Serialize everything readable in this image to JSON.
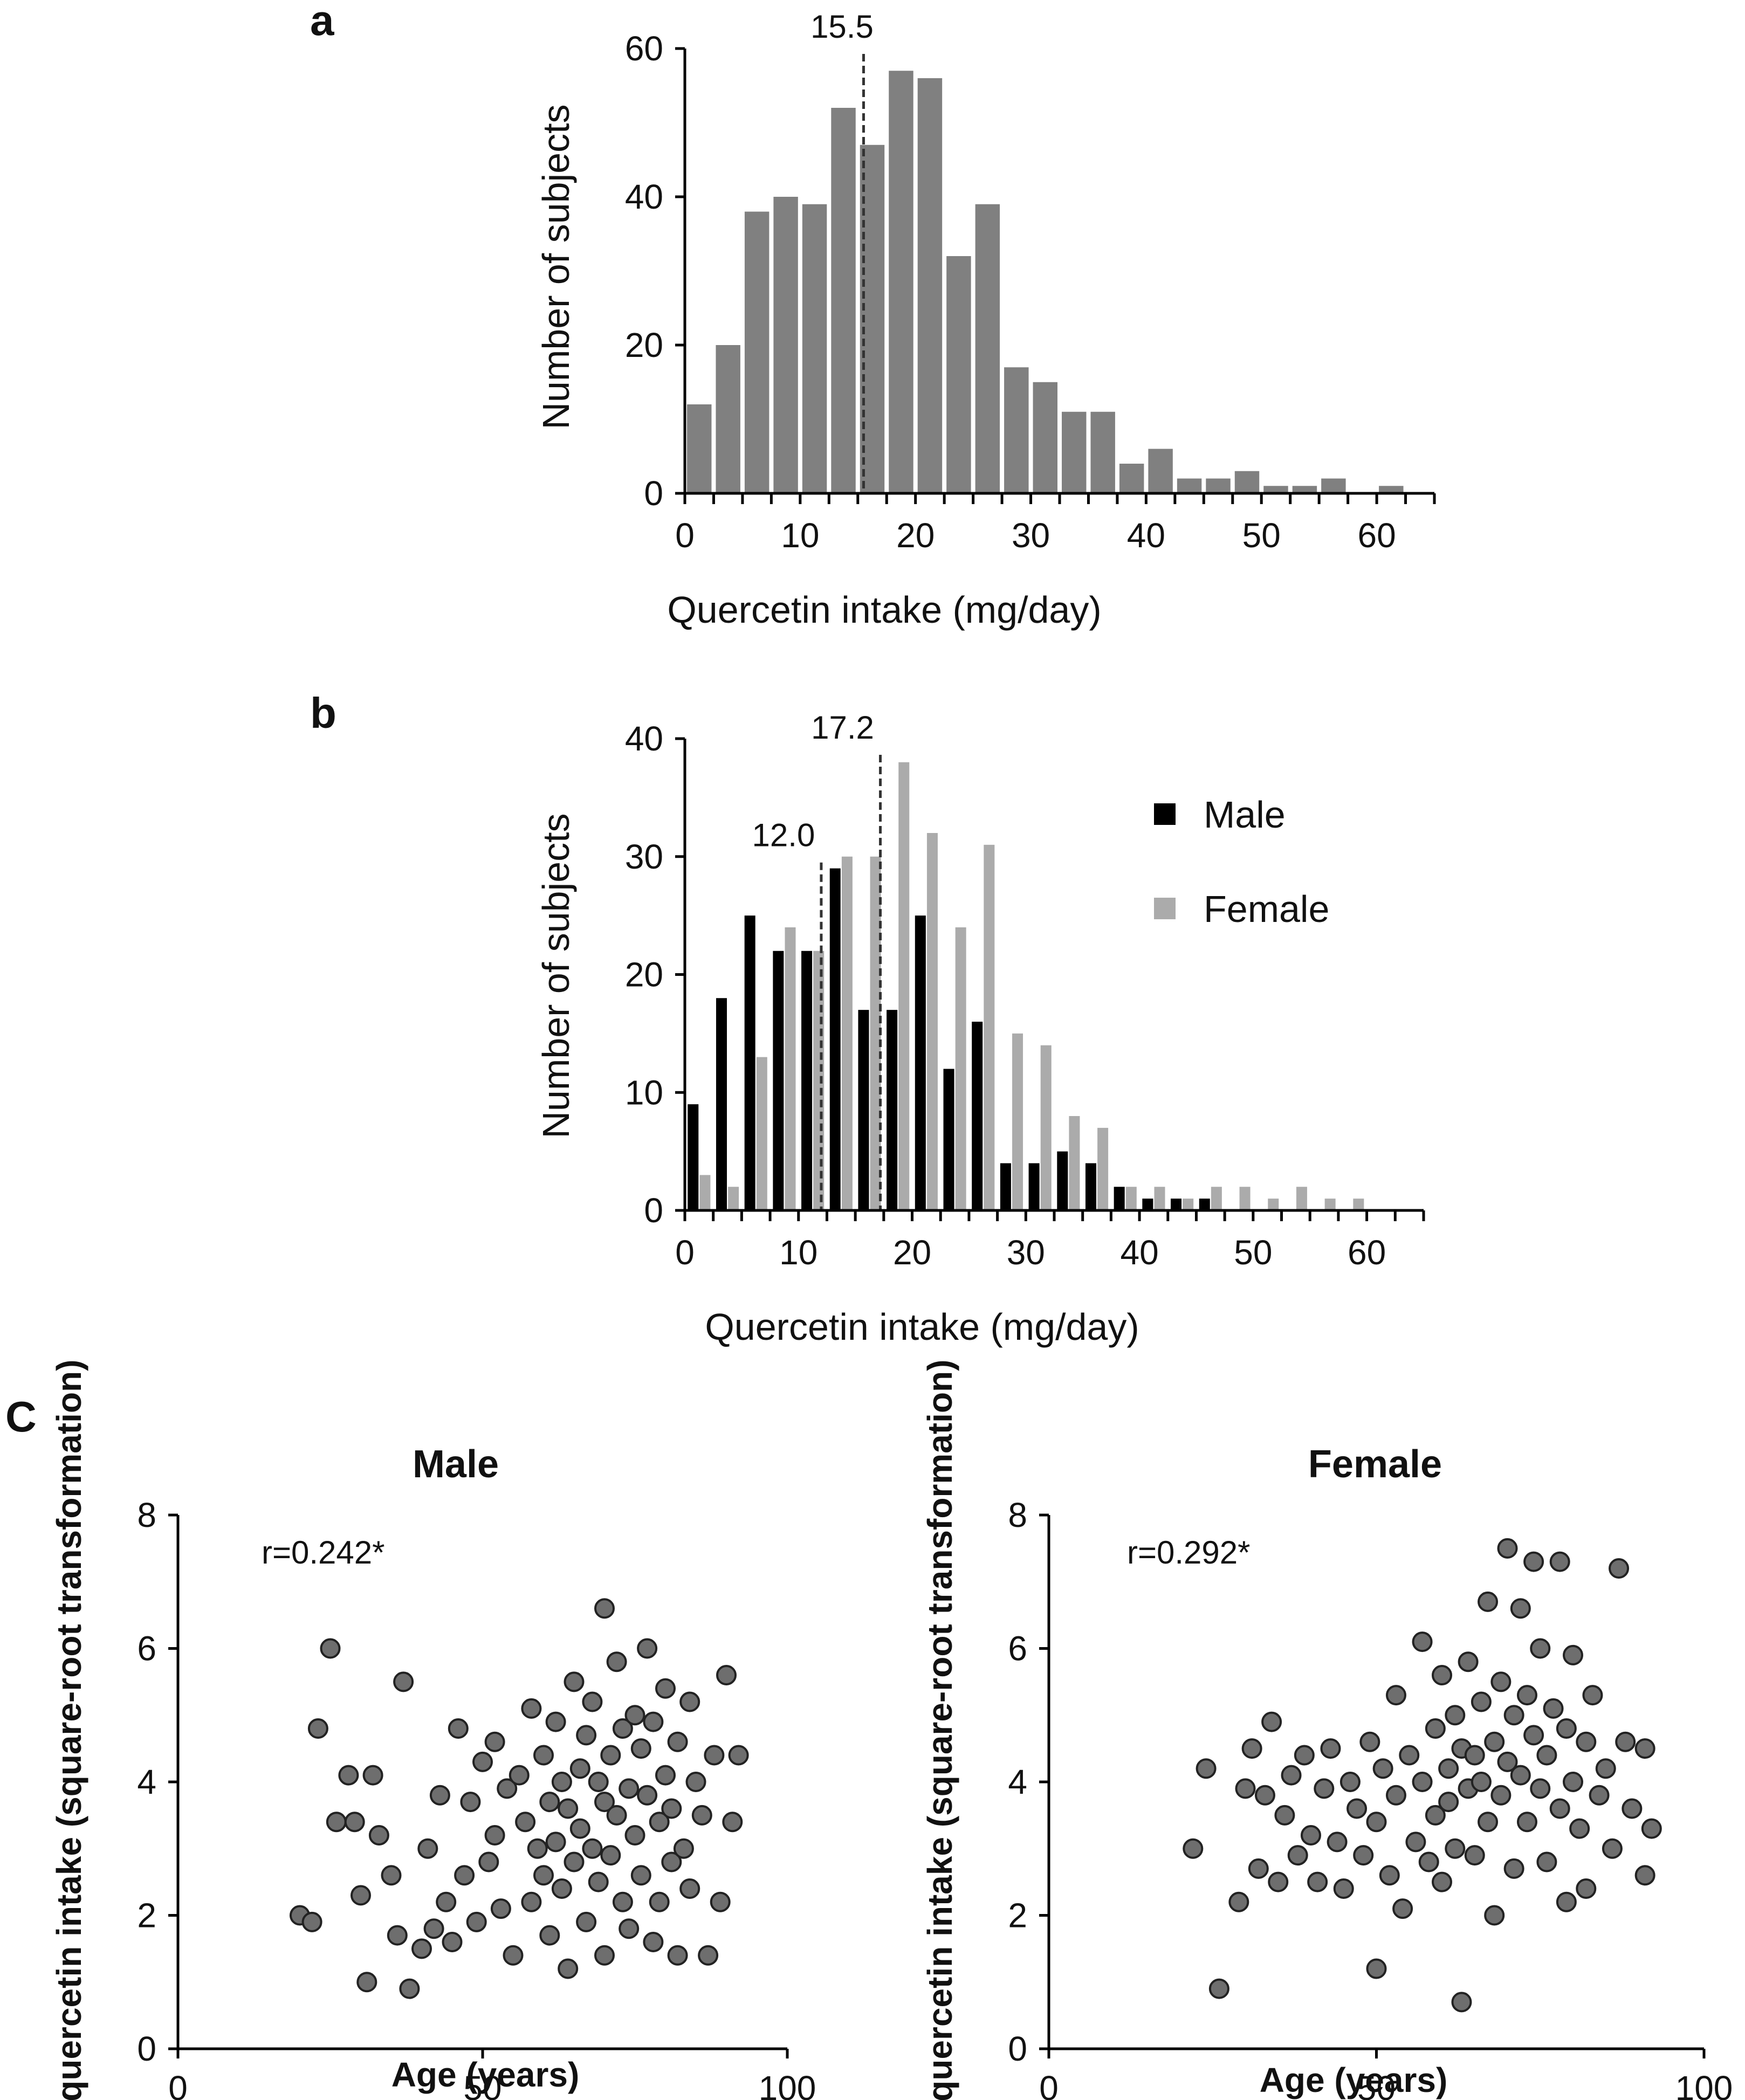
{
  "panels": {
    "a": {
      "letter": "a"
    },
    "b": {
      "letter": "b"
    },
    "c": {
      "letter": "C",
      "male_title": "Male",
      "female_title": "Female"
    }
  },
  "colors": {
    "bar_gray": "#808080",
    "male": "#000000",
    "female": "#ababab",
    "dot_fill": "#6e6e6e"
  },
  "chart_data": [
    {
      "id": "a",
      "type": "bar",
      "xlabel": "Quercetin intake (mg/day)",
      "ylabel": "Number of subjects",
      "xlim": [
        0,
        65
      ],
      "ylim": [
        0,
        60
      ],
      "xticks": [
        0,
        10,
        20,
        30,
        40,
        50,
        60
      ],
      "yticks": [
        0,
        20,
        40,
        60
      ],
      "bin_width": 2.5,
      "bin_starts": [
        0,
        2.5,
        5,
        7.5,
        10,
        12.5,
        15,
        17.5,
        20,
        22.5,
        25,
        27.5,
        30,
        32.5,
        35,
        37.5,
        40,
        42.5,
        45,
        47.5,
        50,
        52.5,
        55,
        57.5,
        60,
        62.5
      ],
      "values": [
        12,
        20,
        38,
        40,
        39,
        52,
        47,
        57,
        56,
        32,
        39,
        17,
        15,
        11,
        11,
        4,
        6,
        2,
        2,
        3,
        1,
        1,
        2,
        0,
        1,
        0
      ],
      "median_line": {
        "x": 15.5,
        "label": "15.5"
      }
    },
    {
      "id": "b",
      "type": "bar",
      "xlabel": "Quercetin intake (mg/day)",
      "ylabel": "Number of subjects",
      "xlim": [
        0,
        65
      ],
      "ylim": [
        0,
        40
      ],
      "xticks": [
        0,
        10,
        20,
        30,
        40,
        50,
        60
      ],
      "yticks": [
        0,
        10,
        20,
        30,
        40
      ],
      "bin_width": 2.5,
      "bin_starts": [
        0,
        2.5,
        5,
        7.5,
        10,
        12.5,
        15,
        17.5,
        20,
        22.5,
        25,
        27.5,
        30,
        32.5,
        35,
        37.5,
        40,
        42.5,
        45,
        47.5,
        50,
        52.5,
        55,
        57.5,
        60,
        62.5
      ],
      "series": [
        {
          "name": "Male",
          "values": [
            9,
            18,
            25,
            22,
            22,
            29,
            17,
            17,
            25,
            12,
            16,
            4,
            4,
            5,
            4,
            2,
            1,
            1,
            1,
            0,
            0,
            0,
            0,
            0,
            0,
            0
          ]
        },
        {
          "name": "Female",
          "values": [
            3,
            2,
            13,
            24,
            22,
            30,
            30,
            38,
            32,
            24,
            31,
            15,
            14,
            8,
            7,
            2,
            2,
            1,
            2,
            2,
            1,
            2,
            1,
            1,
            0,
            0
          ]
        }
      ],
      "median_lines": [
        {
          "x": 12.0,
          "label": "12.0"
        },
        {
          "x": 17.2,
          "label": "17.2"
        }
      ]
    },
    {
      "id": "c-male",
      "type": "scatter",
      "title": "Male",
      "xlabel": "Age (years)",
      "ylabel": "Daily quercetin intake (square-root transformation)",
      "xlim": [
        0,
        100
      ],
      "ylim": [
        0,
        8
      ],
      "xticks": [
        0,
        50,
        100
      ],
      "yticks": [
        0,
        2,
        4,
        6,
        8
      ],
      "annotation": "r=0.242*",
      "points": [
        [
          20,
          2.0
        ],
        [
          22,
          1.9
        ],
        [
          23,
          4.8
        ],
        [
          25,
          6.0
        ],
        [
          26,
          3.4
        ],
        [
          28,
          4.1
        ],
        [
          29,
          3.4
        ],
        [
          30,
          2.3
        ],
        [
          31,
          1.0
        ],
        [
          32,
          4.1
        ],
        [
          33,
          3.2
        ],
        [
          35,
          2.6
        ],
        [
          36,
          1.7
        ],
        [
          37,
          5.5
        ],
        [
          38,
          0.9
        ],
        [
          40,
          1.5
        ],
        [
          41,
          3.0
        ],
        [
          42,
          1.8
        ],
        [
          43,
          3.8
        ],
        [
          44,
          2.2
        ],
        [
          45,
          1.6
        ],
        [
          46,
          4.8
        ],
        [
          47,
          2.6
        ],
        [
          48,
          3.7
        ],
        [
          49,
          1.9
        ],
        [
          50,
          4.3
        ],
        [
          51,
          2.8
        ],
        [
          52,
          3.2
        ],
        [
          52,
          4.6
        ],
        [
          53,
          2.1
        ],
        [
          54,
          3.9
        ],
        [
          55,
          1.4
        ],
        [
          56,
          4.1
        ],
        [
          57,
          3.4
        ],
        [
          58,
          5.1
        ],
        [
          58,
          2.2
        ],
        [
          59,
          3.0
        ],
        [
          60,
          4.4
        ],
        [
          60,
          2.6
        ],
        [
          61,
          3.7
        ],
        [
          61,
          1.7
        ],
        [
          62,
          4.9
        ],
        [
          62,
          3.1
        ],
        [
          63,
          2.4
        ],
        [
          63,
          4.0
        ],
        [
          64,
          3.6
        ],
        [
          64,
          1.2
        ],
        [
          65,
          5.5
        ],
        [
          65,
          2.8
        ],
        [
          66,
          4.2
        ],
        [
          66,
          3.3
        ],
        [
          67,
          1.9
        ],
        [
          67,
          4.7
        ],
        [
          68,
          3.0
        ],
        [
          68,
          5.2
        ],
        [
          69,
          2.5
        ],
        [
          69,
          4.0
        ],
        [
          70,
          3.7
        ],
        [
          70,
          6.6
        ],
        [
          70,
          1.4
        ],
        [
          71,
          4.4
        ],
        [
          71,
          2.9
        ],
        [
          72,
          5.8
        ],
        [
          72,
          3.5
        ],
        [
          73,
          2.2
        ],
        [
          73,
          4.8
        ],
        [
          74,
          3.9
        ],
        [
          74,
          1.8
        ],
        [
          75,
          5.0
        ],
        [
          75,
          3.2
        ],
        [
          76,
          4.5
        ],
        [
          76,
          2.6
        ],
        [
          77,
          6.0
        ],
        [
          77,
          3.8
        ],
        [
          78,
          1.6
        ],
        [
          78,
          4.9
        ],
        [
          79,
          3.4
        ],
        [
          79,
          2.2
        ],
        [
          80,
          5.4
        ],
        [
          80,
          4.1
        ],
        [
          81,
          2.8
        ],
        [
          81,
          3.6
        ],
        [
          82,
          1.4
        ],
        [
          82,
          4.6
        ],
        [
          83,
          3.0
        ],
        [
          84,
          5.2
        ],
        [
          84,
          2.4
        ],
        [
          85,
          4.0
        ],
        [
          86,
          3.5
        ],
        [
          87,
          1.4
        ],
        [
          88,
          4.4
        ],
        [
          89,
          2.2
        ],
        [
          90,
          5.6
        ],
        [
          91,
          3.4
        ],
        [
          92,
          4.4
        ]
      ]
    },
    {
      "id": "c-female",
      "type": "scatter",
      "title": "Female",
      "xlabel": "Age (years)",
      "ylabel": "Daily quercetin intake (square-root transformation)",
      "xlim": [
        0,
        100
      ],
      "ylim": [
        0,
        8
      ],
      "xticks": [
        0,
        50,
        100
      ],
      "yticks": [
        0,
        2,
        4,
        6,
        8
      ],
      "annotation": "r=0.292*",
      "points": [
        [
          22,
          3.0
        ],
        [
          24,
          4.2
        ],
        [
          26,
          0.9
        ],
        [
          29,
          2.2
        ],
        [
          30,
          3.9
        ],
        [
          31,
          4.5
        ],
        [
          32,
          2.7
        ],
        [
          33,
          3.8
        ],
        [
          34,
          4.9
        ],
        [
          35,
          2.5
        ],
        [
          36,
          3.5
        ],
        [
          37,
          4.1
        ],
        [
          38,
          2.9
        ],
        [
          39,
          4.4
        ],
        [
          40,
          3.2
        ],
        [
          41,
          2.5
        ],
        [
          42,
          3.9
        ],
        [
          43,
          4.5
        ],
        [
          44,
          3.1
        ],
        [
          45,
          2.4
        ],
        [
          46,
          4.0
        ],
        [
          47,
          3.6
        ],
        [
          48,
          2.9
        ],
        [
          49,
          4.6
        ],
        [
          50,
          1.2
        ],
        [
          50,
          3.4
        ],
        [
          51,
          4.2
        ],
        [
          52,
          2.6
        ],
        [
          53,
          5.3
        ],
        [
          53,
          3.8
        ],
        [
          54,
          2.1
        ],
        [
          55,
          4.4
        ],
        [
          56,
          3.1
        ],
        [
          57,
          6.1
        ],
        [
          57,
          4.0
        ],
        [
          58,
          2.8
        ],
        [
          59,
          4.8
        ],
        [
          59,
          3.5
        ],
        [
          60,
          5.6
        ],
        [
          60,
          2.5
        ],
        [
          61,
          4.2
        ],
        [
          61,
          3.7
        ],
        [
          62,
          5.0
        ],
        [
          62,
          3.0
        ],
        [
          63,
          4.5
        ],
        [
          63,
          0.7
        ],
        [
          64,
          5.8
        ],
        [
          64,
          3.9
        ],
        [
          65,
          4.4
        ],
        [
          65,
          2.9
        ],
        [
          66,
          5.2
        ],
        [
          66,
          4.0
        ],
        [
          67,
          3.4
        ],
        [
          67,
          6.7
        ],
        [
          68,
          4.6
        ],
        [
          68,
          2.0
        ],
        [
          69,
          5.5
        ],
        [
          69,
          3.8
        ],
        [
          70,
          7.5
        ],
        [
          70,
          4.3
        ],
        [
          71,
          5.0
        ],
        [
          71,
          2.7
        ],
        [
          72,
          6.6
        ],
        [
          72,
          4.1
        ],
        [
          73,
          3.4
        ],
        [
          73,
          5.3
        ],
        [
          74,
          7.3
        ],
        [
          74,
          4.7
        ],
        [
          75,
          3.9
        ],
        [
          75,
          6.0
        ],
        [
          76,
          4.4
        ],
        [
          76,
          2.8
        ],
        [
          77,
          5.1
        ],
        [
          78,
          3.6
        ],
        [
          78,
          7.3
        ],
        [
          79,
          4.8
        ],
        [
          79,
          2.2
        ],
        [
          80,
          4.0
        ],
        [
          80,
          5.9
        ],
        [
          81,
          3.3
        ],
        [
          82,
          4.6
        ],
        [
          82,
          2.4
        ],
        [
          83,
          5.3
        ],
        [
          84,
          3.8
        ],
        [
          85,
          4.2
        ],
        [
          86,
          3.0
        ],
        [
          87,
          7.2
        ],
        [
          88,
          4.6
        ],
        [
          89,
          3.6
        ],
        [
          91,
          4.5
        ],
        [
          91,
          2.6
        ],
        [
          92,
          3.3
        ]
      ]
    }
  ]
}
